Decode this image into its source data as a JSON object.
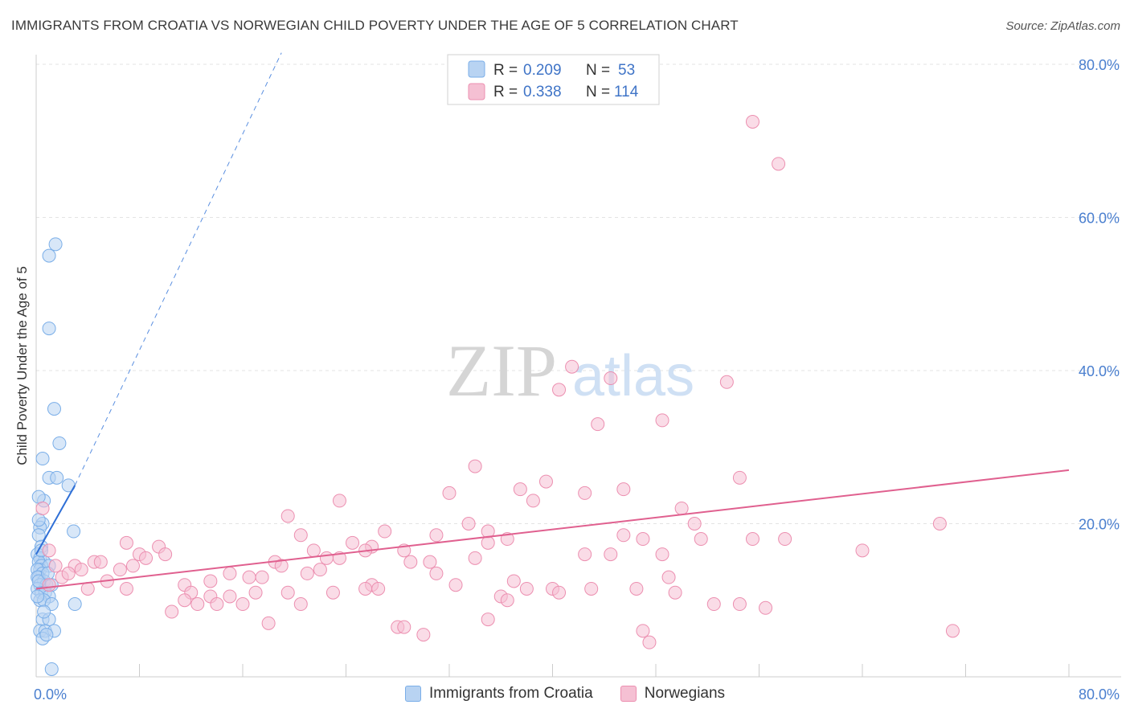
{
  "title": "IMMIGRANTS FROM CROATIA VS NORWEGIAN CHILD POVERTY UNDER THE AGE OF 5 CORRELATION CHART",
  "source": "Source: ZipAtlas.com",
  "watermark": {
    "zip": "ZIP",
    "atlas": "atlas"
  },
  "legend": {
    "r_label": "R =",
    "n_label": "N =",
    "series": [
      {
        "r": "0.209",
        "n": "53"
      },
      {
        "r": "0.338",
        "n": "114"
      }
    ]
  },
  "chart_data": {
    "type": "scatter",
    "title": "IMMIGRANTS FROM CROATIA VS NORWEGIAN CHILD POVERTY UNDER THE AGE OF 5 CORRELATION CHART",
    "xlabel": "",
    "ylabel": "Child Poverty Under the Age of 5",
    "xlim": [
      0,
      80
    ],
    "ylim": [
      0,
      80
    ],
    "x_tick_labels": [
      "0.0%",
      "80.0%"
    ],
    "y_tick_labels": [
      "20.0%",
      "40.0%",
      "60.0%",
      "80.0%"
    ],
    "y_ticks": [
      20,
      40,
      60,
      80
    ],
    "grid": true,
    "legend_position": "top-center",
    "series": [
      {
        "name": "Immigrants from Croatia",
        "color": "#7aaee8",
        "fill": "#b8d3f2",
        "trend": {
          "x": [
            0,
            3.0
          ],
          "y": [
            16.0,
            25.0
          ],
          "extended_to": [
            19.0,
            81.5
          ]
        },
        "points": [
          [
            1.5,
            56.5
          ],
          [
            1.0,
            55.0
          ],
          [
            1.0,
            45.5
          ],
          [
            1.4,
            35.0
          ],
          [
            1.8,
            30.5
          ],
          [
            0.5,
            28.5
          ],
          [
            1.0,
            26.0
          ],
          [
            1.6,
            26.0
          ],
          [
            2.5,
            25.0
          ],
          [
            0.6,
            23.0
          ],
          [
            0.2,
            23.5
          ],
          [
            0.5,
            20.0
          ],
          [
            2.9,
            19.0
          ],
          [
            0.3,
            19.5
          ],
          [
            0.2,
            18.5
          ],
          [
            0.4,
            17.0
          ],
          [
            0.1,
            16.0
          ],
          [
            0.3,
            15.5
          ],
          [
            0.6,
            15.0
          ],
          [
            0.2,
            15.0
          ],
          [
            0.4,
            14.5
          ],
          [
            0.3,
            14.0
          ],
          [
            0.1,
            14.0
          ],
          [
            1.0,
            14.5
          ],
          [
            0.5,
            13.5
          ],
          [
            0.2,
            13.0
          ],
          [
            0.1,
            13.0
          ],
          [
            0.6,
            12.5
          ],
          [
            0.3,
            12.0
          ],
          [
            0.8,
            12.0
          ],
          [
            1.2,
            12.0
          ],
          [
            0.1,
            11.5
          ],
          [
            0.4,
            11.0
          ],
          [
            0.7,
            11.0
          ],
          [
            1.0,
            10.5
          ],
          [
            0.3,
            10.0
          ],
          [
            0.6,
            10.0
          ],
          [
            1.2,
            9.5
          ],
          [
            3.0,
            9.5
          ],
          [
            0.5,
            7.5
          ],
          [
            1.0,
            7.5
          ],
          [
            0.3,
            6.0
          ],
          [
            0.7,
            6.0
          ],
          [
            1.4,
            6.0
          ],
          [
            0.5,
            5.0
          ],
          [
            0.8,
            5.5
          ],
          [
            1.2,
            1.0
          ],
          [
            0.2,
            20.5
          ],
          [
            0.4,
            16.5
          ],
          [
            0.2,
            12.5
          ],
          [
            0.9,
            13.5
          ],
          [
            0.1,
            10.5
          ],
          [
            0.6,
            8.5
          ]
        ]
      },
      {
        "name": "Norwegians",
        "color": "#ec8fb0",
        "fill": "#f5c0d3",
        "trend": {
          "x": [
            0,
            80
          ],
          "y": [
            11.5,
            27.0
          ]
        },
        "points": [
          [
            55.5,
            72.5
          ],
          [
            57.5,
            67.0
          ],
          [
            41.5,
            40.5
          ],
          [
            44.5,
            39.0
          ],
          [
            53.5,
            38.5
          ],
          [
            40.5,
            37.5
          ],
          [
            43.5,
            33.0
          ],
          [
            48.5,
            33.5
          ],
          [
            34.0,
            27.5
          ],
          [
            54.5,
            26.0
          ],
          [
            39.5,
            25.5
          ],
          [
            37.5,
            24.5
          ],
          [
            42.5,
            24.0
          ],
          [
            45.5,
            24.5
          ],
          [
            32.0,
            24.0
          ],
          [
            38.5,
            23.0
          ],
          [
            23.5,
            23.0
          ],
          [
            50.0,
            22.0
          ],
          [
            19.5,
            21.0
          ],
          [
            33.5,
            20.0
          ],
          [
            51.0,
            20.0
          ],
          [
            70.0,
            20.0
          ],
          [
            35.0,
            19.0
          ],
          [
            27.0,
            19.0
          ],
          [
            45.5,
            18.5
          ],
          [
            20.5,
            18.5
          ],
          [
            31.0,
            18.5
          ],
          [
            36.5,
            18.0
          ],
          [
            47.0,
            18.0
          ],
          [
            55.5,
            18.0
          ],
          [
            51.5,
            18.0
          ],
          [
            35.0,
            17.5
          ],
          [
            7.0,
            17.5
          ],
          [
            9.5,
            17.0
          ],
          [
            24.5,
            17.5
          ],
          [
            26.0,
            17.0
          ],
          [
            21.5,
            16.5
          ],
          [
            25.5,
            16.5
          ],
          [
            8.0,
            16.0
          ],
          [
            10.0,
            16.0
          ],
          [
            28.5,
            16.5
          ],
          [
            34.0,
            15.5
          ],
          [
            44.5,
            16.0
          ],
          [
            42.5,
            16.0
          ],
          [
            48.5,
            16.0
          ],
          [
            64.0,
            16.5
          ],
          [
            58.0,
            18.0
          ],
          [
            22.5,
            15.5
          ],
          [
            4.5,
            15.0
          ],
          [
            5.0,
            15.0
          ],
          [
            3.0,
            14.5
          ],
          [
            8.5,
            15.5
          ],
          [
            18.5,
            15.0
          ],
          [
            23.5,
            15.5
          ],
          [
            29.0,
            15.0
          ],
          [
            30.5,
            15.0
          ],
          [
            6.5,
            14.0
          ],
          [
            7.5,
            14.5
          ],
          [
            19.0,
            14.5
          ],
          [
            22.0,
            14.0
          ],
          [
            15.0,
            13.5
          ],
          [
            31.0,
            13.5
          ],
          [
            16.5,
            13.0
          ],
          [
            13.5,
            12.5
          ],
          [
            17.5,
            13.0
          ],
          [
            5.5,
            12.5
          ],
          [
            11.5,
            12.0
          ],
          [
            26.0,
            12.0
          ],
          [
            32.5,
            12.0
          ],
          [
            37.0,
            12.5
          ],
          [
            40.0,
            11.5
          ],
          [
            49.0,
            13.0
          ],
          [
            46.5,
            11.5
          ],
          [
            7.0,
            11.5
          ],
          [
            19.5,
            11.0
          ],
          [
            23.0,
            11.0
          ],
          [
            2.0,
            13.0
          ],
          [
            3.5,
            14.0
          ],
          [
            4.0,
            11.5
          ],
          [
            12.0,
            11.0
          ],
          [
            13.5,
            10.5
          ],
          [
            15.0,
            10.5
          ],
          [
            17.0,
            11.0
          ],
          [
            25.5,
            11.5
          ],
          [
            38.0,
            11.5
          ],
          [
            36.0,
            10.5
          ],
          [
            43.0,
            11.5
          ],
          [
            11.5,
            10.0
          ],
          [
            12.5,
            9.5
          ],
          [
            14.0,
            9.5
          ],
          [
            16.0,
            9.5
          ],
          [
            20.5,
            9.5
          ],
          [
            36.5,
            10.0
          ],
          [
            52.5,
            9.5
          ],
          [
            54.5,
            9.5
          ],
          [
            56.5,
            9.0
          ],
          [
            10.5,
            8.5
          ],
          [
            35.0,
            7.5
          ],
          [
            18.0,
            7.0
          ],
          [
            28.0,
            6.5
          ],
          [
            28.5,
            6.5
          ],
          [
            30.0,
            5.5
          ],
          [
            40.5,
            11.0
          ],
          [
            49.5,
            11.0
          ],
          [
            47.0,
            6.0
          ],
          [
            47.5,
            4.5
          ],
          [
            71.0,
            6.0
          ],
          [
            1.0,
            16.5
          ],
          [
            0.5,
            22.0
          ],
          [
            1.5,
            14.5
          ],
          [
            2.5,
            13.5
          ],
          [
            1.0,
            12.0
          ],
          [
            26.5,
            11.5
          ],
          [
            21.0,
            13.5
          ]
        ]
      }
    ]
  }
}
